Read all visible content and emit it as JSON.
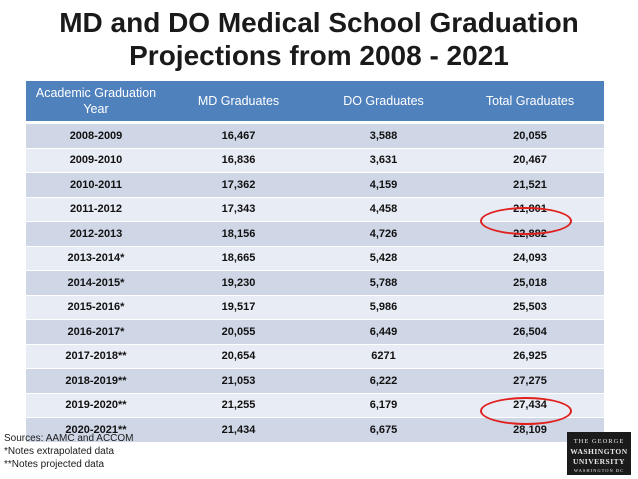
{
  "title": {
    "line1": "MD and DO Medical School Graduation",
    "line2": "Projections from 2008 - 2021"
  },
  "table": {
    "headers": [
      "Academic Graduation  Year",
      "MD Graduates",
      "DO Graduates",
      "Total Graduates"
    ],
    "rows": [
      [
        "2008-2009",
        "16,467",
        "3,588",
        "20,055"
      ],
      [
        "2009-2010",
        "16,836",
        "3,631",
        "20,467"
      ],
      [
        "2010-2011",
        "17,362",
        "4,159",
        "21,521"
      ],
      [
        "2011-2012",
        "17,343",
        "4,458",
        "21,801"
      ],
      [
        "2012-2013",
        "18,156",
        "4,726",
        "22,882"
      ],
      [
        "2013-2014*",
        "18,665",
        "5,428",
        "24,093"
      ],
      [
        "2014-2015*",
        "19,230",
        "5,788",
        "25,018"
      ],
      [
        "2015-2016*",
        "19,517",
        "5,986",
        "25,503"
      ],
      [
        "2016-2017*",
        "20,055",
        "6,449",
        "26,504"
      ],
      [
        "2017-2018**",
        "20,654",
        "6271",
        "26,925"
      ],
      [
        "2018-2019**",
        "21,053",
        "6,222",
        "27,275"
      ],
      [
        "2019-2020**",
        "21,255",
        "6,179",
        "27,434"
      ],
      [
        "2020-2021**",
        "21,434",
        "6,675",
        "28,109"
      ]
    ]
  },
  "highlights": {
    "color": "#e0201c",
    "circled_cells": [
      "22,882",
      "28,109"
    ]
  },
  "notes": {
    "sources": "Sources: AAMC and ACCOM",
    "note1": "*Notes extrapolated data",
    "note2": "**Notes projected data"
  },
  "logo": {
    "line1": "THE GEORGE",
    "line2": "WASHINGTON",
    "line3": "UNIVERSITY",
    "line4": "WASHINGTON DC"
  },
  "colors": {
    "header_bg": "#4f81bd",
    "row_dark": "#cfd7e7",
    "row_light": "#e8ecf4"
  }
}
